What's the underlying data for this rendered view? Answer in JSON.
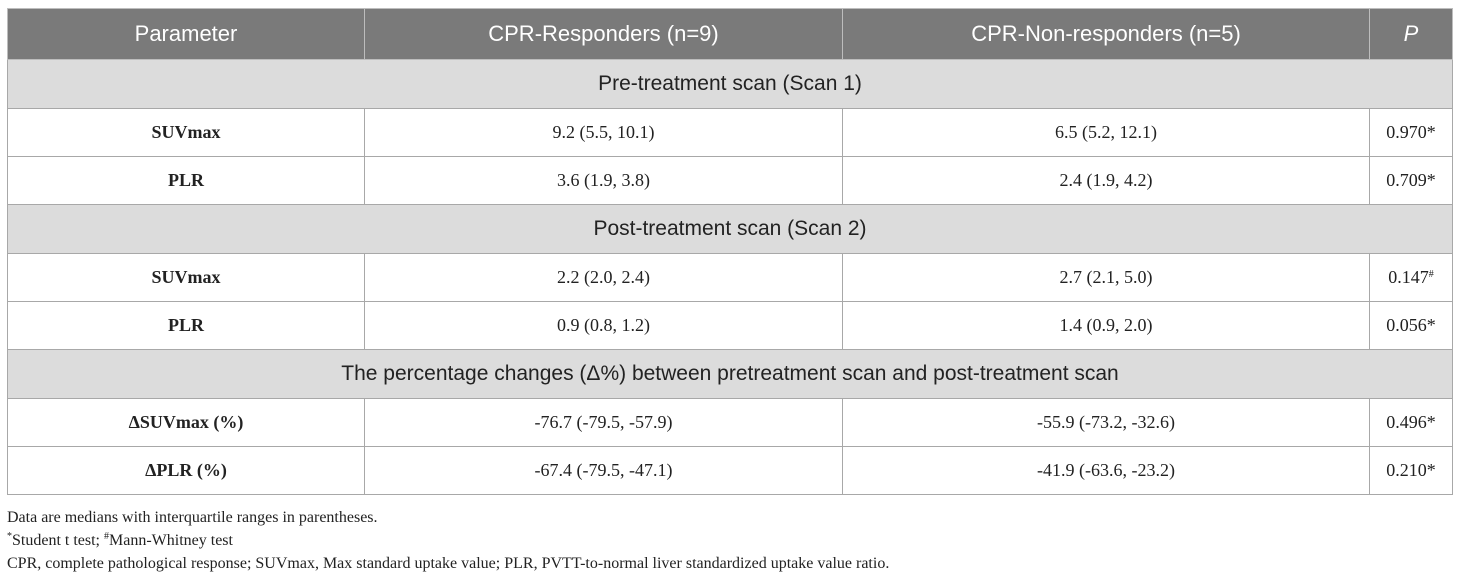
{
  "table": {
    "headers": [
      "Parameter",
      "CPR-Responders (n=9)",
      "CPR-Non-responders (n=5)",
      "P"
    ],
    "sections": [
      {
        "title": "Pre-treatment scan (Scan 1)",
        "rows": [
          {
            "param": "SUVmax",
            "responders": "9.2 (5.5, 10.1)",
            "non_responders": "6.5 (5.2, 12.1)",
            "p_value": "0.970",
            "p_mark": "*"
          },
          {
            "param": "PLR",
            "responders": "3.6 (1.9, 3.8)",
            "non_responders": "2.4 (1.9, 4.2)",
            "p_value": "0.709",
            "p_mark": "*"
          }
        ]
      },
      {
        "title": "Post-treatment scan (Scan 2)",
        "rows": [
          {
            "param": "SUVmax",
            "responders": "2.2 (2.0, 2.4)",
            "non_responders": "2.7 (2.1, 5.0)",
            "p_value": "0.147",
            "p_mark": "#"
          },
          {
            "param": "PLR",
            "responders": "0.9 (0.8, 1.2)",
            "non_responders": "1.4 (0.9, 2.0)",
            "p_value": "0.056",
            "p_mark": "*"
          }
        ]
      },
      {
        "title": "The percentage changes (Δ%) between pretreatment scan and post-treatment scan",
        "rows": [
          {
            "param": "ΔSUVmax (%)",
            "responders": "-76.7 (-79.5, -57.9)",
            "non_responders": "-55.9 (-73.2, -32.6)",
            "p_value": "0.496",
            "p_mark": "*"
          },
          {
            "param": "ΔPLR (%)",
            "responders": "-67.4 (-79.5, -47.1)",
            "non_responders": "-41.9 (-63.6, -23.2)",
            "p_value": "0.210",
            "p_mark": "*"
          }
        ]
      }
    ]
  },
  "footnotes": {
    "line1": "Data are medians with interquartile ranges in parentheses.",
    "line2": {
      "mark1": "*",
      "text1": "Student t test; ",
      "mark2": "#",
      "text2": "Mann-Whitney test"
    },
    "line3": "CPR, complete pathological response; SUVmax, Max standard uptake value; PLR, PVTT-to-normal liver standardized uptake value ratio."
  }
}
